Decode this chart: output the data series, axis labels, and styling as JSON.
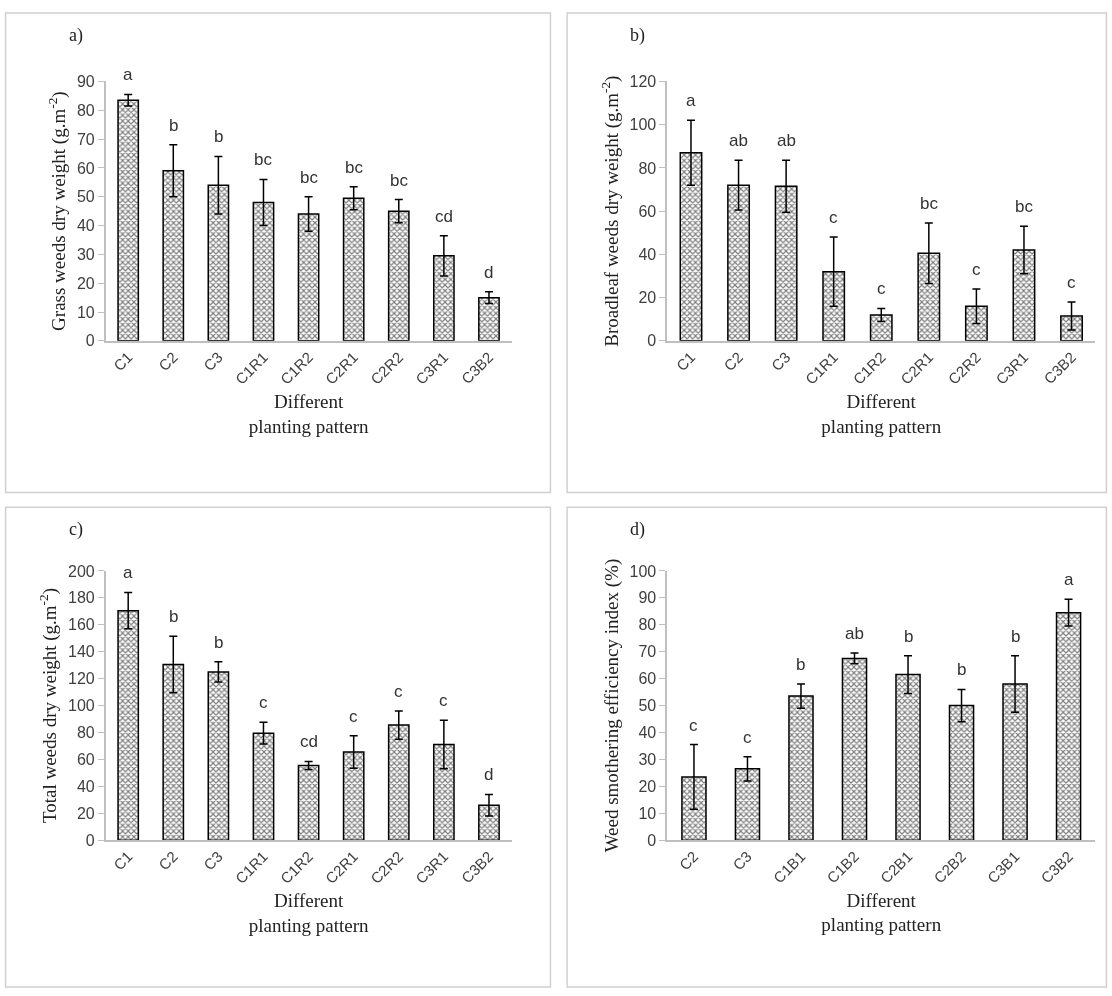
{
  "chart_data": [
    {
      "type": "bar",
      "title": "a)",
      "ylabel": "Grass weeds dry weight (g.m$^{-2}$)",
      "xlabel": "Different\nplanting pattern",
      "categories": [
        "C1",
        "C2",
        "C3",
        "C1R1",
        "C1R2",
        "C2R1",
        "C2R2",
        "C3R1",
        "C3B2"
      ],
      "values": [
        83.5,
        59,
        54,
        48,
        44,
        49.5,
        45,
        29.5,
        15
      ],
      "errors": [
        2,
        9,
        10,
        8,
        6,
        4,
        4,
        7,
        2
      ],
      "color": "#000000",
      "ylim": [
        0,
        90
      ],
      "yticks": [
        0,
        10,
        20,
        30,
        40,
        50,
        60,
        70,
        80,
        90
      ],
      "value_labels": [
        "a",
        "b",
        "b",
        "bc",
        "bc",
        "bc",
        "bc",
        "cd",
        "d"
      ]
    },
    {
      "type": "bar",
      "title": "b)",
      "ylabel": "Broadleaf weeds dry weight (g.m$^{-2}$)",
      "xlabel": "Different\nplanting pattern",
      "categories": [
        "C1",
        "C2",
        "C3",
        "C1R1",
        "C1R2",
        "C2R1",
        "C2R2",
        "C3R1",
        "C3B2"
      ],
      "values": [
        87,
        72,
        71.5,
        32,
        12,
        40.5,
        16,
        42,
        11.5
      ],
      "errors": [
        15,
        11.5,
        12,
        16,
        3,
        14,
        8,
        11,
        6.5
      ],
      "color": "#000000",
      "ylim": [
        0,
        120
      ],
      "yticks": [
        0,
        20,
        40,
        60,
        80,
        100,
        120
      ],
      "value_labels": [
        "a",
        "ab",
        "ab",
        "c",
        "c",
        "bc",
        "c",
        "bc",
        "c"
      ]
    },
    {
      "type": "bar",
      "title": "c)",
      "ylabel": "Total weeds dry weight (g.m$^{-2}$)",
      "xlabel": "Different\nplanting pattern",
      "categories": [
        "C1",
        "C2",
        "C3",
        "C1R1",
        "C1R2",
        "C2R1",
        "C2R2",
        "C3R1",
        "C3B2"
      ],
      "values": [
        170.5,
        130.5,
        125,
        79.5,
        55.5,
        65.5,
        85.5,
        71,
        26
      ],
      "errors": [
        13.5,
        21,
        7.5,
        8,
        3,
        12,
        10.5,
        18,
        8
      ],
      "color": "#000000",
      "ylim": [
        0,
        200
      ],
      "yticks": [
        0,
        20,
        40,
        60,
        80,
        100,
        120,
        140,
        160,
        180,
        200
      ],
      "value_labels": [
        "a",
        "b",
        "b",
        "c",
        "cd",
        "c",
        "c",
        "c",
        "d"
      ]
    },
    {
      "type": "bar",
      "title": "d)",
      "ylabel": "Weed smothering efficiency index (%)",
      "xlabel": "Different\nplanting pattern",
      "categories": [
        "C2",
        "C3",
        "C1B1",
        "C1B2",
        "C2B1",
        "C2B2",
        "C3B1",
        "C3B2"
      ],
      "values": [
        23.5,
        26.5,
        53.5,
        67.5,
        61.5,
        50,
        58,
        84.5
      ],
      "errors": [
        12,
        4.5,
        4.5,
        2,
        7,
        6,
        10.5,
        5
      ],
      "color": "#000000",
      "ylim": [
        0,
        100
      ],
      "yticks": [
        0,
        10,
        20,
        30,
        40,
        50,
        60,
        70,
        80,
        90,
        100
      ],
      "value_labels": [
        "c",
        "c",
        "b",
        "ab",
        "b",
        "b",
        "b",
        "a"
      ]
    }
  ]
}
